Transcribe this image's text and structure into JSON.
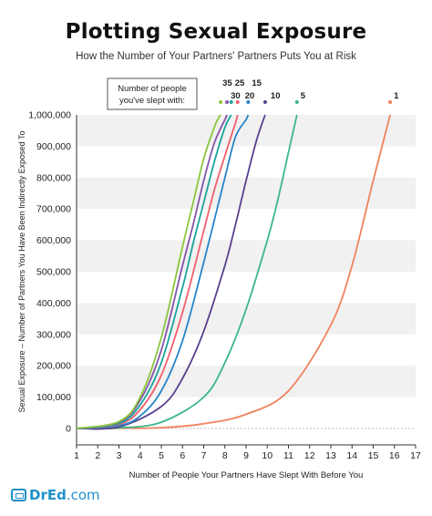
{
  "title": "Plotting Sexual Exposure",
  "subtitle": "How the Number of Your Partners' Partners Puts You at Risk",
  "logo": {
    "name": "DrEd",
    "suffix": ".com"
  },
  "chart_data": {
    "type": "line",
    "xlabel": "Number of People Your Partners Have Slept With Before You",
    "ylabel": "Sexual Exposure – Number of Partners You Have Been Indirectly Exposed To",
    "legend_title": "Number of people you've slept with:",
    "xlim": [
      1,
      17
    ],
    "ylim": [
      0,
      1000000
    ],
    "x_ticks": [
      1,
      2,
      3,
      4,
      5,
      6,
      7,
      8,
      9,
      10,
      11,
      12,
      13,
      14,
      15,
      16,
      17
    ],
    "y_ticks": [
      0,
      100000,
      200000,
      300000,
      400000,
      500000,
      600000,
      700000,
      800000,
      900000,
      1000000
    ],
    "y_tick_labels": [
      "0",
      "100,000",
      "200,000",
      "300,000",
      "400,000",
      "500,000",
      "600,000",
      "700,000",
      "800,000",
      "900,000",
      "1,000,000"
    ],
    "grid": "horizontal bands",
    "series": [
      {
        "name": "1",
        "color": "#f0825e",
        "x": [
          1,
          3,
          5,
          7,
          9,
          11,
          13,
          14,
          15,
          15.8
        ],
        "y": [
          0,
          500,
          2500,
          15000,
          45000,
          120000,
          330000,
          520000,
          790000,
          1000000
        ]
      },
      {
        "name": "5",
        "color": "#3cb68d",
        "x": [
          1,
          3,
          5,
          7,
          8,
          9,
          10,
          10.5,
          11,
          11.4
        ],
        "y": [
          0,
          2000,
          20000,
          100000,
          210000,
          380000,
          600000,
          730000,
          880000,
          1000000
        ]
      },
      {
        "name": "10",
        "color": "#59408f",
        "x": [
          1,
          3,
          5,
          6,
          7,
          8,
          8.5,
          9,
          9.5,
          9.9
        ],
        "y": [
          0,
          5000,
          70000,
          160000,
          310000,
          520000,
          650000,
          790000,
          920000,
          1000000
        ]
      },
      {
        "name": "15",
        "color": "#2584c8",
        "x": [
          1,
          3,
          4,
          5,
          6,
          7,
          8,
          8.5,
          9,
          9.1
        ],
        "y": [
          0,
          9000,
          40000,
          120000,
          280000,
          530000,
          800000,
          930000,
          985000,
          1000000
        ]
      },
      {
        "name": "20",
        "color": "#f25f6e",
        "x": [
          1,
          3,
          4,
          5,
          6,
          7,
          7.5,
          8,
          8.5,
          8.6
        ],
        "y": [
          0,
          13000,
          60000,
          170000,
          370000,
          630000,
          760000,
          870000,
          975000,
          1000000
        ]
      },
      {
        "name": "25",
        "color": "#1aa39d",
        "x": [
          1,
          3,
          4,
          5,
          6,
          6.5,
          7,
          7.5,
          8,
          8.3
        ],
        "y": [
          0,
          16000,
          75000,
          210000,
          450000,
          590000,
          720000,
          850000,
          960000,
          1000000
        ]
      },
      {
        "name": "30",
        "color": "#8455a8",
        "x": [
          1,
          3,
          4,
          5,
          6,
          6.5,
          7,
          7.5,
          8,
          8.1
        ],
        "y": [
          0,
          20000,
          90000,
          250000,
          520000,
          650000,
          790000,
          910000,
          985000,
          1000000
        ]
      },
      {
        "name": "35",
        "color": "#8cc63e",
        "x": [
          1,
          3,
          4,
          5,
          6,
          6.5,
          7,
          7.5,
          7.7,
          7.8
        ],
        "y": [
          0,
          22000,
          100000,
          290000,
          580000,
          720000,
          860000,
          960000,
          990000,
          1000000
        ]
      }
    ]
  }
}
